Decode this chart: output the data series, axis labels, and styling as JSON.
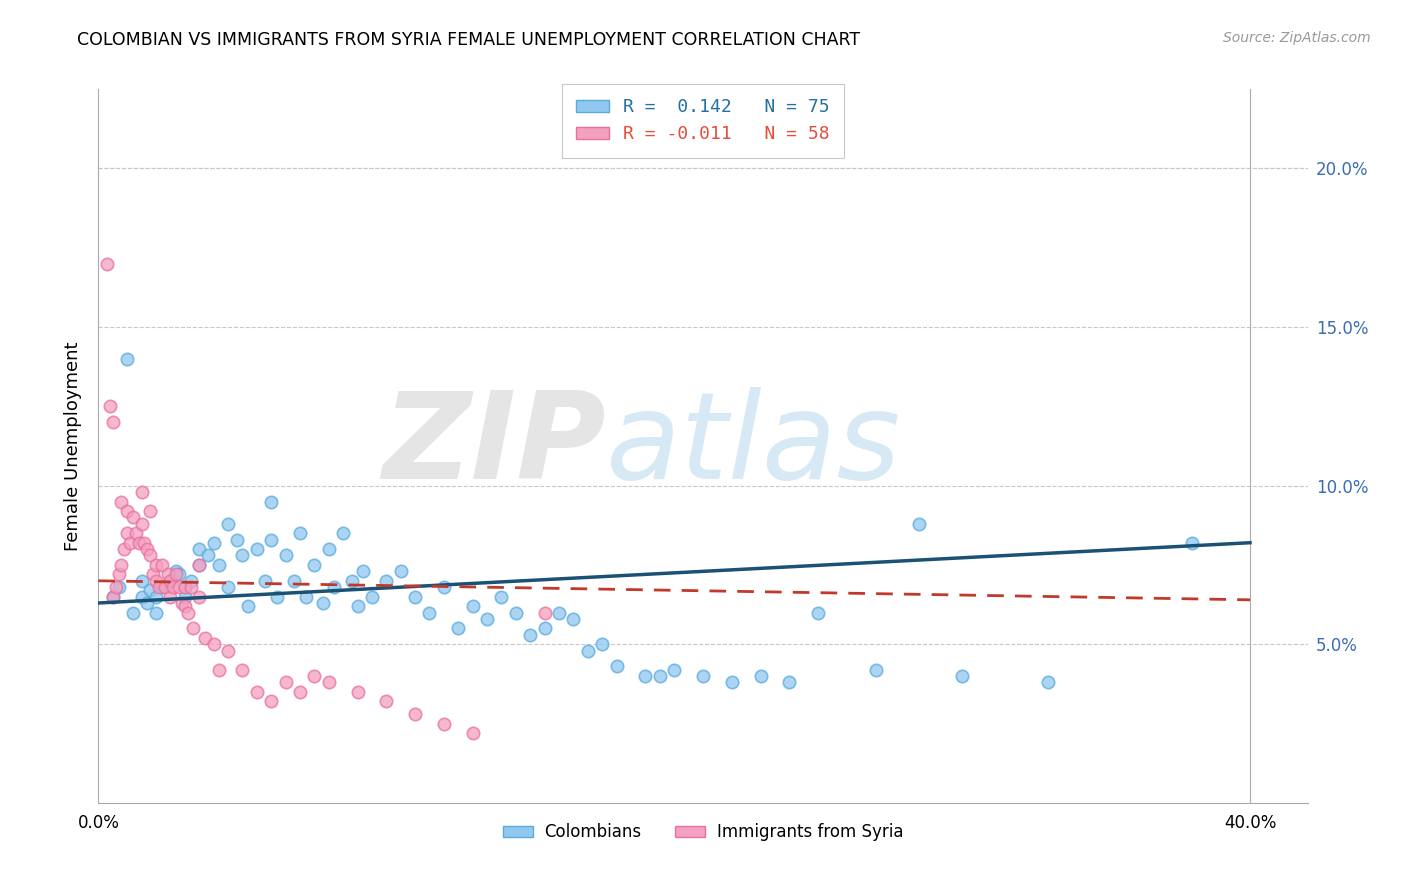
{
  "title": "COLOMBIAN VS IMMIGRANTS FROM SYRIA FEMALE UNEMPLOYMENT CORRELATION CHART",
  "source": "Source: ZipAtlas.com",
  "ylabel": "Female Unemployment",
  "xlim": [
    0.0,
    0.42
  ],
  "ylim": [
    0.0,
    0.225
  ],
  "yticks_right": [
    0.05,
    0.1,
    0.15,
    0.2
  ],
  "ytick_labels_right": [
    "5.0%",
    "10.0%",
    "15.0%",
    "20.0%"
  ],
  "xtick_positions": [
    0.0,
    0.1,
    0.2,
    0.3,
    0.4
  ],
  "xtick_labels": [
    "0.0%",
    "",
    "",
    "",
    "40.0%"
  ],
  "blue_color": "#90C8F0",
  "pink_color": "#F4A0C0",
  "blue_edge_color": "#5AAADE",
  "pink_edge_color": "#E870A0",
  "blue_line_color": "#1A5276",
  "pink_line_color": "#C0392B",
  "legend_text_blue": "R =  0.142   N = 75",
  "legend_text_pink": "R = -0.011   N = 58",
  "legend_color_blue": "#2471A3",
  "legend_color_pink": "#E74C3C",
  "colombians_label": "Colombians",
  "syria_label": "Immigrants from Syria",
  "watermark_zip": "ZIP",
  "watermark_atlas": "atlas",
  "blue_trend_x": [
    0.0,
    0.4
  ],
  "blue_trend_y": [
    0.063,
    0.082
  ],
  "pink_trend_x": [
    0.0,
    0.4
  ],
  "pink_trend_y": [
    0.07,
    0.064
  ],
  "blue_scatter_x": [
    0.005,
    0.007,
    0.01,
    0.012,
    0.015,
    0.015,
    0.017,
    0.018,
    0.02,
    0.02,
    0.022,
    0.025,
    0.027,
    0.028,
    0.03,
    0.03,
    0.032,
    0.035,
    0.035,
    0.038,
    0.04,
    0.042,
    0.045,
    0.045,
    0.048,
    0.05,
    0.052,
    0.055,
    0.058,
    0.06,
    0.06,
    0.062,
    0.065,
    0.068,
    0.07,
    0.072,
    0.075,
    0.078,
    0.08,
    0.082,
    0.085,
    0.088,
    0.09,
    0.092,
    0.095,
    0.1,
    0.105,
    0.11,
    0.115,
    0.12,
    0.125,
    0.13,
    0.135,
    0.14,
    0.145,
    0.15,
    0.155,
    0.16,
    0.165,
    0.17,
    0.175,
    0.18,
    0.19,
    0.195,
    0.2,
    0.21,
    0.22,
    0.23,
    0.24,
    0.25,
    0.27,
    0.285,
    0.3,
    0.33,
    0.38
  ],
  "blue_scatter_y": [
    0.065,
    0.068,
    0.14,
    0.06,
    0.065,
    0.07,
    0.063,
    0.067,
    0.065,
    0.06,
    0.068,
    0.07,
    0.073,
    0.072,
    0.068,
    0.065,
    0.07,
    0.08,
    0.075,
    0.078,
    0.082,
    0.075,
    0.088,
    0.068,
    0.083,
    0.078,
    0.062,
    0.08,
    0.07,
    0.095,
    0.083,
    0.065,
    0.078,
    0.07,
    0.085,
    0.065,
    0.075,
    0.063,
    0.08,
    0.068,
    0.085,
    0.07,
    0.062,
    0.073,
    0.065,
    0.07,
    0.073,
    0.065,
    0.06,
    0.068,
    0.055,
    0.062,
    0.058,
    0.065,
    0.06,
    0.053,
    0.055,
    0.06,
    0.058,
    0.048,
    0.05,
    0.043,
    0.04,
    0.04,
    0.042,
    0.04,
    0.038,
    0.04,
    0.038,
    0.06,
    0.042,
    0.088,
    0.04,
    0.038,
    0.082
  ],
  "pink_scatter_x": [
    0.003,
    0.004,
    0.005,
    0.005,
    0.006,
    0.007,
    0.008,
    0.008,
    0.009,
    0.01,
    0.01,
    0.011,
    0.012,
    0.013,
    0.014,
    0.015,
    0.015,
    0.016,
    0.017,
    0.018,
    0.018,
    0.019,
    0.02,
    0.02,
    0.021,
    0.022,
    0.023,
    0.024,
    0.025,
    0.025,
    0.026,
    0.027,
    0.028,
    0.029,
    0.03,
    0.03,
    0.031,
    0.032,
    0.033,
    0.035,
    0.035,
    0.037,
    0.04,
    0.042,
    0.045,
    0.05,
    0.055,
    0.06,
    0.065,
    0.07,
    0.075,
    0.08,
    0.09,
    0.1,
    0.11,
    0.12,
    0.13,
    0.155
  ],
  "pink_scatter_y": [
    0.17,
    0.125,
    0.12,
    0.065,
    0.068,
    0.072,
    0.095,
    0.075,
    0.08,
    0.092,
    0.085,
    0.082,
    0.09,
    0.085,
    0.082,
    0.098,
    0.088,
    0.082,
    0.08,
    0.092,
    0.078,
    0.072,
    0.075,
    0.07,
    0.068,
    0.075,
    0.068,
    0.072,
    0.07,
    0.065,
    0.068,
    0.072,
    0.068,
    0.063,
    0.068,
    0.062,
    0.06,
    0.068,
    0.055,
    0.075,
    0.065,
    0.052,
    0.05,
    0.042,
    0.048,
    0.042,
    0.035,
    0.032,
    0.038,
    0.035,
    0.04,
    0.038,
    0.035,
    0.032,
    0.028,
    0.025,
    0.022,
    0.06
  ]
}
